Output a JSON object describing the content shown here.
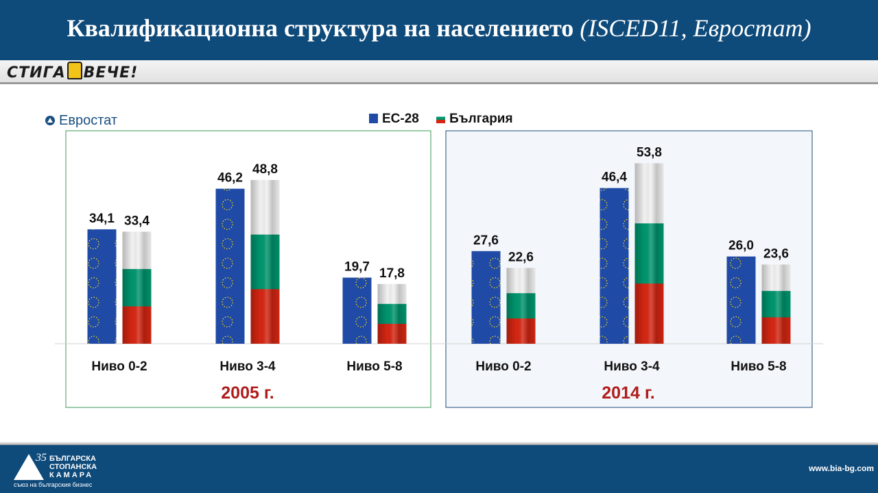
{
  "header": {
    "title": "Квалификационна структура на населението",
    "title_italic": "(ISCED11, Евростат)"
  },
  "brand": {
    "left": "СТИГА",
    "right": "ВЕЧЕ!"
  },
  "source_label": "Евростат",
  "legend": {
    "eu": "ЕС-28",
    "bg": "България"
  },
  "chart_data": {
    "type": "bar",
    "groups": [
      {
        "year_label": "2005 г.",
        "categories": [
          "Ниво 0-2",
          "Ниво 3-4",
          "Ниво 5-8"
        ],
        "series": [
          {
            "name": "ЕС-28",
            "values": [
              34.1,
              46.2,
              19.7
            ],
            "labels": [
              "34,1",
              "46,2",
              "19,7"
            ]
          },
          {
            "name": "България",
            "values": [
              33.4,
              48.8,
              17.8
            ],
            "labels": [
              "33,4",
              "48,8",
              "17,8"
            ]
          }
        ]
      },
      {
        "year_label": "2014 г.",
        "categories": [
          "Ниво 0-2",
          "Ниво 3-4",
          "Ниво 5-8"
        ],
        "series": [
          {
            "name": "ЕС-28",
            "values": [
              27.6,
              46.4,
              26.0
            ],
            "labels": [
              "27,6",
              "46,4",
              "26,0"
            ]
          },
          {
            "name": "България",
            "values": [
              22.6,
              53.8,
              23.6
            ],
            "labels": [
              "22,6",
              "53,8",
              "23,6"
            ]
          }
        ]
      }
    ],
    "colors": {
      "eu_blue": "#1f4aa6",
      "eu_star": "#f5d213",
      "bg_white": "#f2f2f2",
      "bg_green": "#00966e",
      "bg_red": "#d62612",
      "year_text": "#b01c1c",
      "frame_2005": "#3a9a5a",
      "frame_2014": "#1e4a7a"
    }
  },
  "footer": {
    "logo_years": "35",
    "logo_line1": "БЪЛГАРСКА",
    "logo_line2": "СТОПАНСКА",
    "logo_line3": "КАМАРА",
    "logo_tagline": "съюз на българския бизнес",
    "website": "www.bia-bg.com"
  }
}
